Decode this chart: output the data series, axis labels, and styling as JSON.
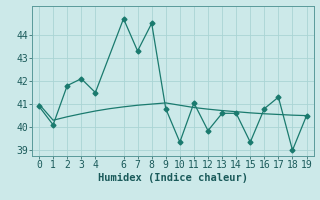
{
  "x": [
    0,
    1,
    2,
    3,
    4,
    6,
    7,
    8,
    9,
    10,
    11,
    12,
    13,
    14,
    15,
    16,
    17,
    18,
    19
  ],
  "y": [
    40.9,
    40.1,
    41.8,
    42.1,
    41.5,
    44.7,
    43.3,
    44.5,
    40.8,
    39.35,
    41.05,
    39.85,
    40.6,
    40.6,
    39.35,
    40.8,
    41.3,
    39.0,
    40.5
  ],
  "trend_x": [
    0,
    1,
    2,
    3,
    4,
    5,
    6,
    7,
    8,
    9,
    10,
    11,
    12,
    13,
    14,
    15,
    16,
    17,
    18,
    19
  ],
  "trend_y": [
    41.0,
    40.3,
    40.45,
    40.58,
    40.7,
    40.8,
    40.88,
    40.95,
    41.0,
    41.05,
    40.95,
    40.85,
    40.78,
    40.72,
    40.67,
    40.62,
    40.58,
    40.55,
    40.52,
    40.5
  ],
  "line_color": "#1a7a6e",
  "bg_color": "#cce9e9",
  "grid_color": "#aad4d4",
  "xlabel": "Humidex (Indice chaleur)",
  "ylim": [
    38.75,
    45.25
  ],
  "xlim": [
    -0.5,
    19.5
  ],
  "yticks": [
    39,
    40,
    41,
    42,
    43,
    44
  ],
  "xticks": [
    0,
    1,
    2,
    3,
    4,
    6,
    7,
    8,
    9,
    10,
    11,
    12,
    13,
    14,
    15,
    16,
    17,
    18,
    19
  ],
  "font_size": 7.5
}
